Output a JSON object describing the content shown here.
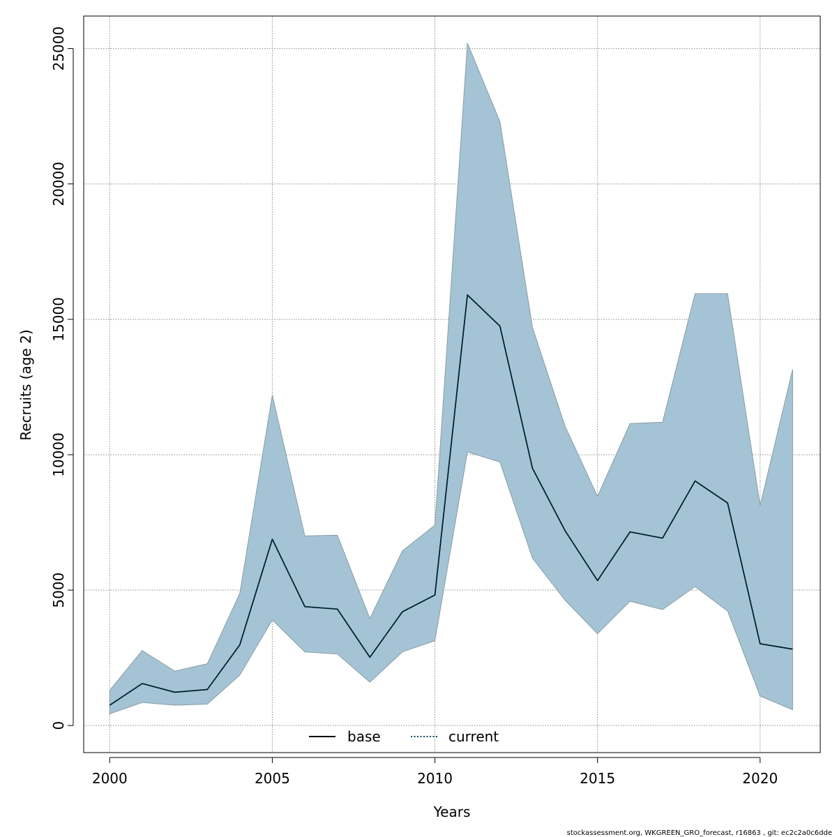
{
  "chart_data": {
    "type": "line",
    "title": "",
    "xlabel": "Years",
    "ylabel": "Recruits (age 2)",
    "xlim": [
      1999.2,
      2021.85
    ],
    "ylim": [
      -1000,
      26200
    ],
    "x_ticks": [
      2000,
      2005,
      2010,
      2015,
      2020
    ],
    "y_ticks": [
      0,
      5000,
      10000,
      15000,
      20000,
      25000
    ],
    "grid": true,
    "legend_position": "bottom-center",
    "x": [
      2000,
      2001,
      2002,
      2003,
      2004,
      2005,
      2006,
      2007,
      2008,
      2009,
      2010,
      2011,
      2012,
      2013,
      2014,
      2015,
      2016,
      2017,
      2018,
      2019,
      2020,
      2021
    ],
    "series": [
      {
        "name": "base",
        "style": "solid",
        "color": "#000000",
        "values": [
          750,
          1550,
          1230,
          1330,
          2980,
          6880,
          4390,
          4300,
          2520,
          4200,
          4820,
          15900,
          14750,
          9500,
          7200,
          5350,
          7150,
          6920,
          9030,
          8220,
          3020,
          2820
        ]
      },
      {
        "name": "current",
        "style": "dotted",
        "color": "#00425a",
        "values": [
          750,
          1550,
          1230,
          1330,
          2980,
          6880,
          4390,
          4300,
          2520,
          4200,
          4820,
          15900,
          14750,
          9500,
          7200,
          5350,
          7150,
          6920,
          9030,
          8220,
          3020,
          2820
        ]
      }
    ],
    "confidence_band": {
      "fill_color": "#a4c4d5",
      "edge_color": "#8a9ba5",
      "lower": [
        430,
        850,
        750,
        790,
        1860,
        3900,
        2720,
        2640,
        1600,
        2720,
        3130,
        10100,
        9730,
        6180,
        4630,
        3390,
        4590,
        4280,
        5130,
        4230,
        1090,
        580
      ],
      "upper": [
        1300,
        2770,
        2010,
        2280,
        4880,
        12200,
        7000,
        7030,
        3950,
        6450,
        7400,
        25200,
        22300,
        14700,
        11060,
        8460,
        11150,
        11200,
        15950,
        15950,
        8120,
        13150
      ]
    }
  },
  "footer_text": "stockassessment.org, WKGREEN_GRO_forecast, r16863 , git: ec2c2a0c6dde"
}
